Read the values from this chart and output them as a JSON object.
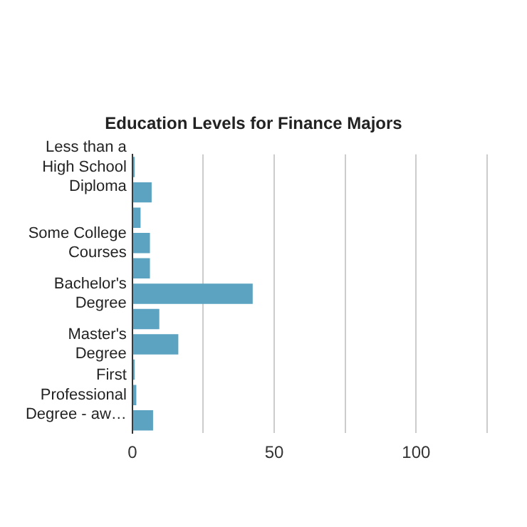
{
  "chart_data": {
    "type": "bar",
    "orientation": "horizontal",
    "title": "Education Levels for Finance Majors",
    "categories": [
      "Less than a High School Diploma",
      null,
      null,
      "Some College Courses",
      null,
      "Bachelor's Degree",
      null,
      "Master's Degree",
      null,
      "First Professional Degree - aw…",
      null
    ],
    "values": [
      0.8,
      6.8,
      2.9,
      6.2,
      6.2,
      42.4,
      9.5,
      16.2,
      0.8,
      1.4,
      7.3
    ],
    "color": "#5ba3c0",
    "xlim": [
      0,
      125
    ],
    "xticks": [
      0,
      {
        "value": 25,
        "label": null
      },
      50,
      {
        "value": 75,
        "label": null
      },
      100,
      {
        "value": 125,
        "label": null
      }
    ],
    "grid": "x",
    "legend": false
  }
}
